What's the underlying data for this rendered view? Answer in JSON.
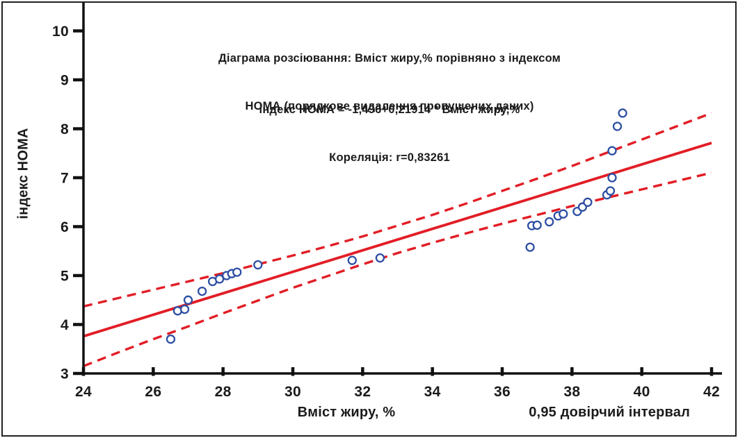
{
  "frame": {
    "background": "#ffffff",
    "border_color": "#222222"
  },
  "chart_data": {
    "type": "scatter",
    "title_line1": "Діаграма розсіювання: Вміст жиру,% порівняно з індексом",
    "title_line2": "НОМА (порядкове видалення пропущених даних)",
    "equation": "індекс НОМА = -1,496+0,21914 * Вміст жиру,%",
    "correlation": "Кореляція: r=0,83261",
    "xlabel": "Вміст жиру, %",
    "ylabel": "індекс НОМА",
    "legend": "0,95 довірчий інтервал",
    "xlim": [
      24,
      42
    ],
    "ylim": [
      3,
      10
    ],
    "xticks": [
      24,
      26,
      28,
      30,
      32,
      34,
      36,
      38,
      40,
      42
    ],
    "yticks": [
      3,
      4,
      5,
      6,
      7,
      8,
      9,
      10
    ],
    "grid": false,
    "legend_position": "bottom-right",
    "points": [
      [
        26.5,
        3.7
      ],
      [
        26.7,
        4.28
      ],
      [
        26.9,
        4.31
      ],
      [
        27.0,
        4.5
      ],
      [
        27.4,
        4.68
      ],
      [
        27.7,
        4.88
      ],
      [
        27.9,
        4.93
      ],
      [
        28.1,
        5.0
      ],
      [
        28.25,
        5.04
      ],
      [
        28.4,
        5.07
      ],
      [
        29.0,
        5.22
      ],
      [
        31.7,
        5.31
      ],
      [
        32.5,
        5.36
      ],
      [
        36.8,
        5.58
      ],
      [
        36.85,
        6.02
      ],
      [
        37.0,
        6.03
      ],
      [
        37.35,
        6.1
      ],
      [
        37.6,
        6.22
      ],
      [
        37.75,
        6.26
      ],
      [
        38.15,
        6.31
      ],
      [
        38.3,
        6.4
      ],
      [
        38.45,
        6.5
      ],
      [
        39.0,
        6.65
      ],
      [
        39.1,
        6.73
      ],
      [
        39.15,
        7.0
      ],
      [
        39.15,
        7.55
      ],
      [
        39.3,
        8.05
      ],
      [
        39.45,
        8.32
      ]
    ],
    "regression": {
      "x": [
        24,
        42
      ],
      "y": [
        3.76,
        7.71
      ]
    },
    "confidence_band": {
      "x": [
        24,
        25,
        26,
        27,
        28,
        29,
        30,
        31,
        32,
        33,
        34,
        35,
        36,
        37,
        38,
        39,
        40,
        41,
        42
      ],
      "upper": [
        4.37,
        4.54,
        4.71,
        4.88,
        5.05,
        5.23,
        5.41,
        5.6,
        5.8,
        6.02,
        6.24,
        6.48,
        6.73,
        6.98,
        7.24,
        7.51,
        7.78,
        8.05,
        8.32
      ],
      "lower": [
        3.15,
        3.43,
        3.7,
        3.96,
        4.23,
        4.49,
        4.75,
        4.99,
        5.23,
        5.46,
        5.67,
        5.87,
        6.06,
        6.24,
        6.42,
        6.59,
        6.76,
        6.93,
        7.1
      ]
    },
    "colors": {
      "points": "#2d4ea4",
      "line": "#e21d25",
      "band": "#e21d25",
      "axis": "#111111",
      "text": "#1b1b1b"
    }
  }
}
